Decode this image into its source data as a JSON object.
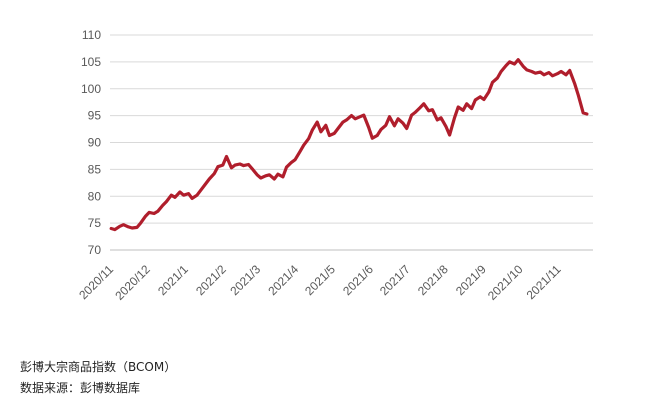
{
  "chart_data": {
    "type": "line",
    "title": "",
    "xlabel": "",
    "ylabel": "",
    "ylim": [
      70,
      110
    ],
    "yticks": [
      70,
      75,
      80,
      85,
      90,
      95,
      100,
      105,
      110
    ],
    "xticks": [
      "2020/11",
      "2020/12",
      "2021/1",
      "2021/2",
      "2021/3",
      "2021/4",
      "2021/5",
      "2021/6",
      "2021/7",
      "2021/8",
      "2021/9",
      "2021/10",
      "2021/11"
    ],
    "grid": "y-axis lines",
    "line_color": "#B01E2C",
    "series": [
      {
        "x": [
          "2020/11/02",
          "2020/11/05",
          "2020/11/09",
          "2020/11/12",
          "2020/11/16",
          "2020/11/19",
          "2020/11/23",
          "2020/11/26",
          "2020/11/30",
          "2020/12/03",
          "2020/12/07",
          "2020/12/10",
          "2020/12/14",
          "2020/12/17",
          "2020/12/21",
          "2020/12/24",
          "2020/12/28",
          "2020/12/31",
          "2021/01/04",
          "2021/01/07",
          "2021/01/11",
          "2021/01/14",
          "2021/01/18",
          "2021/01/21",
          "2021/01/25",
          "2021/01/28",
          "2021/02/01",
          "2021/02/04",
          "2021/02/08",
          "2021/02/11",
          "2021/02/15",
          "2021/02/18",
          "2021/02/22",
          "2021/02/25",
          "2021/03/01",
          "2021/03/04",
          "2021/03/08",
          "2021/03/11",
          "2021/03/15",
          "2021/03/18",
          "2021/03/22",
          "2021/03/25",
          "2021/03/29",
          "2021/04/01",
          "2021/04/05",
          "2021/04/08",
          "2021/04/12",
          "2021/04/15",
          "2021/04/19",
          "2021/04/22",
          "2021/04/26",
          "2021/04/29",
          "2021/05/03",
          "2021/05/06",
          "2021/05/10",
          "2021/05/13",
          "2021/05/17",
          "2021/05/20",
          "2021/05/24",
          "2021/05/27",
          "2021/05/31",
          "2021/06/03",
          "2021/06/07",
          "2021/06/10",
          "2021/06/14",
          "2021/06/17",
          "2021/06/21",
          "2021/06/24",
          "2021/06/28",
          "2021/07/01",
          "2021/07/05",
          "2021/07/08",
          "2021/07/12",
          "2021/07/15",
          "2021/07/19",
          "2021/07/22",
          "2021/07/26",
          "2021/07/29",
          "2021/08/02",
          "2021/08/05",
          "2021/08/09",
          "2021/08/12",
          "2021/08/16",
          "2021/08/19",
          "2021/08/23",
          "2021/08/26",
          "2021/08/30",
          "2021/09/02",
          "2021/09/06",
          "2021/09/09",
          "2021/09/13",
          "2021/09/16",
          "2021/09/20",
          "2021/09/23",
          "2021/09/27",
          "2021/09/30",
          "2021/10/04",
          "2021/10/07",
          "2021/10/11",
          "2021/10/14",
          "2021/10/18",
          "2021/10/21",
          "2021/10/25",
          "2021/10/28",
          "2021/11/01",
          "2021/11/04",
          "2021/11/08",
          "2021/11/11",
          "2021/11/15",
          "2021/11/18",
          "2021/11/22",
          "2021/11/25"
        ],
        "values": [
          74,
          73.8,
          74.4,
          74.7,
          74.3,
          74.1,
          74.2,
          75.0,
          76.3,
          77.0,
          76.8,
          77.2,
          78.3,
          79.0,
          80.2,
          79.8,
          80.8,
          80.2,
          80.5,
          79.6,
          80.2,
          81.1,
          82.3,
          83.2,
          84.2,
          85.5,
          85.8,
          87.4,
          85.3,
          85.8,
          86.0,
          85.7,
          85.9,
          85.1,
          84.0,
          83.4,
          83.8,
          84.0,
          83.2,
          84.1,
          83.6,
          85.4,
          86.3,
          86.8,
          88.3,
          89.5,
          90.7,
          92.3,
          93.8,
          92.0,
          93.2,
          91.3,
          91.7,
          92.6,
          93.8,
          94.2,
          95.0,
          94.4,
          94.8,
          95.1,
          92.8,
          90.8,
          91.3,
          92.4,
          93.2,
          94.8,
          93.1,
          94.4,
          93.6,
          92.6,
          95.1,
          95.6,
          96.5,
          97.2,
          95.9,
          96.1,
          94.2,
          94.6,
          93.0,
          91.4,
          94.6,
          96.6,
          96.0,
          97.2,
          96.3,
          97.9,
          98.5,
          98.0,
          99.4,
          101.2,
          102.0,
          103.2,
          104.3,
          105.0,
          104.6,
          105.4,
          104.2,
          103.5,
          103.2,
          102.9,
          103.1,
          102.6,
          103.0,
          102.4,
          102.8,
          103.2,
          102.6,
          103.4,
          101.0,
          98.8,
          95.5,
          95.3
        ]
      }
    ]
  },
  "caption": {
    "title": "彭博大宗商品指数（BCOM）",
    "source": "数据来源：彭博数据库"
  }
}
